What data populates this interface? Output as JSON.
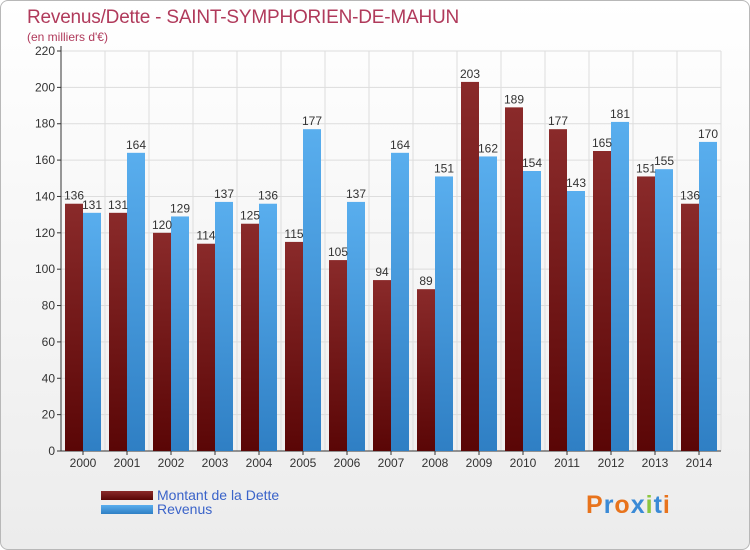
{
  "chart_data": {
    "type": "bar",
    "title": "Revenus/Dette - SAINT-SYMPHORIEN-DE-MAHUN",
    "subtitle": "(en milliers d'€)",
    "categories": [
      "2000",
      "2001",
      "2002",
      "2003",
      "2004",
      "2005",
      "2006",
      "2007",
      "2008",
      "2009",
      "2010",
      "2011",
      "2012",
      "2013",
      "2014"
    ],
    "series": [
      {
        "name": "Montant de la Dette",
        "color": "#7a1818",
        "values": [
          136,
          131,
          120,
          114,
          125,
          115,
          105,
          94,
          89,
          203,
          189,
          177,
          165,
          151,
          136
        ]
      },
      {
        "name": "Revenus",
        "color": "#4da3e6",
        "values": [
          131,
          164,
          129,
          137,
          136,
          177,
          137,
          164,
          151,
          162,
          154,
          143,
          181,
          155,
          170
        ]
      }
    ],
    "ylim": [
      0,
      220
    ],
    "yticks": [
      0,
      20,
      40,
      60,
      80,
      100,
      120,
      140,
      160,
      180,
      200,
      220
    ],
    "grid": true,
    "legend": "bottom-left"
  },
  "logo": {
    "text": "Proxiti"
  }
}
